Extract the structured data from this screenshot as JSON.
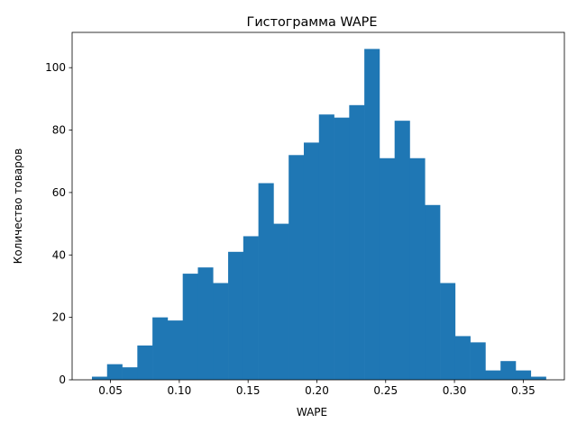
{
  "chart_data": {
    "type": "bar",
    "title": "Гистограмма WAPE",
    "xlabel": "WAPE",
    "ylabel": "Количество товаров",
    "bin_start": 0.0365,
    "bin_width": 0.011,
    "values": [
      1,
      5,
      4,
      11,
      20,
      19,
      34,
      36,
      31,
      41,
      46,
      63,
      50,
      72,
      76,
      85,
      84,
      88,
      106,
      71,
      83,
      71,
      56,
      31,
      14,
      12,
      3,
      6,
      3,
      1
    ],
    "xlim": [
      0.0221,
      0.3799
    ],
    "ylim": [
      0,
      111.3
    ],
    "x_ticks": [
      0.05,
      0.1,
      0.15,
      0.2,
      0.25,
      0.3,
      0.35
    ],
    "x_tick_labels": [
      "0.05",
      "0.10",
      "0.15",
      "0.20",
      "0.25",
      "0.30",
      "0.35"
    ],
    "y_ticks": [
      0,
      20,
      40,
      60,
      80,
      100
    ],
    "y_tick_labels": [
      "0",
      "20",
      "40",
      "60",
      "80",
      "100"
    ],
    "bar_color": "#1f77b4",
    "grid": false
  }
}
